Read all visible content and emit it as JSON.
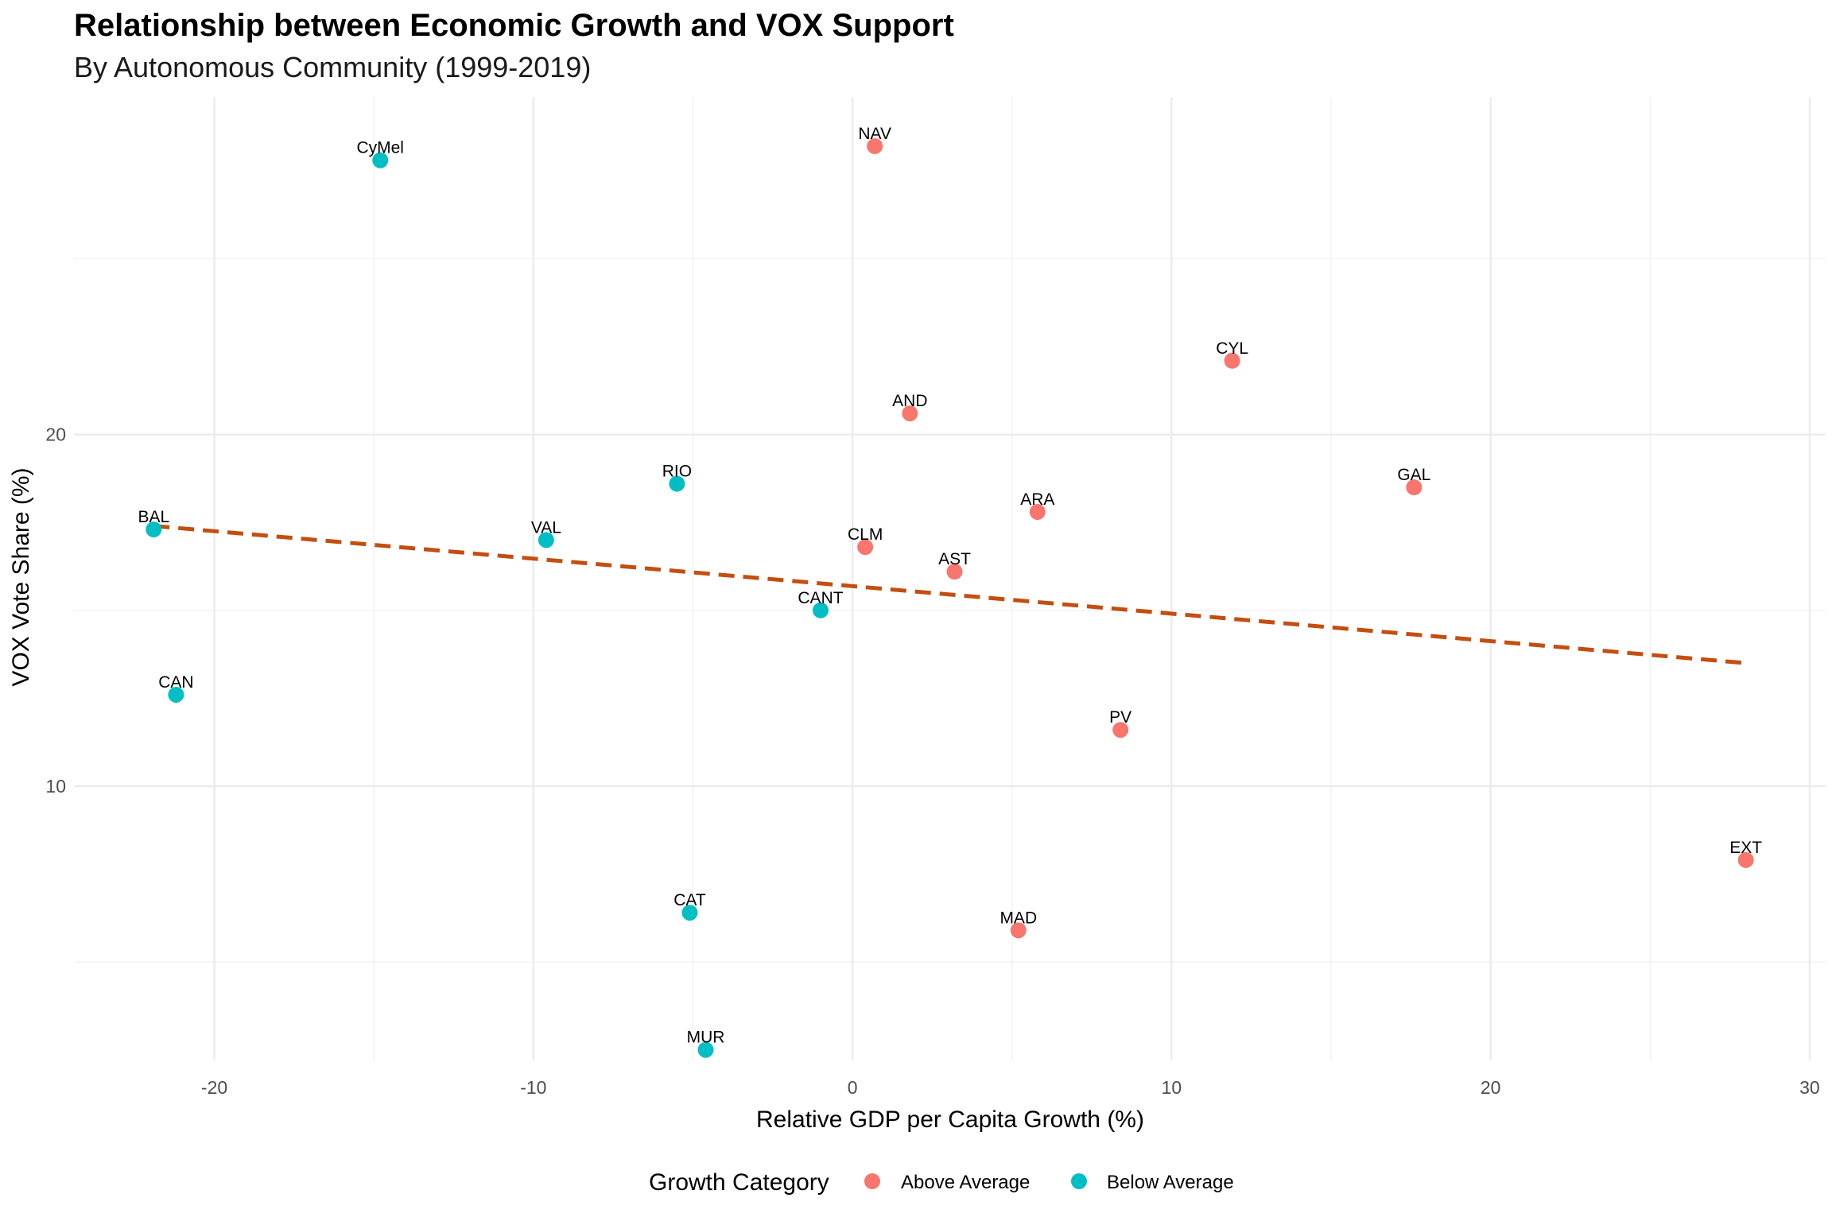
{
  "chart_data": {
    "type": "scatter",
    "title": "Relationship between Economic Growth and VOX Support",
    "subtitle": "By Autonomous Community (1999-2019)",
    "xlabel": "Relative GDP per Capita Growth (%)",
    "ylabel": "VOX Vote Share (%)",
    "xlim": [
      -24.4,
      30.5
    ],
    "ylim": [
      2.2,
      29.6
    ],
    "x_ticks": [
      -20,
      -10,
      0,
      10,
      20,
      30
    ],
    "x_tick_labels": [
      "-20",
      "-10",
      "0",
      "10",
      "20",
      "30"
    ],
    "y_ticks": [
      10,
      20
    ],
    "y_tick_labels": [
      "10",
      "20"
    ],
    "grid": true,
    "legend": {
      "title": "Growth Category",
      "position": "bottom",
      "entries": [
        {
          "name": "Above Average",
          "color": "#F8766D"
        },
        {
          "name": "Below Average",
          "color": "#00BFC4"
        }
      ]
    },
    "trendline": {
      "style": "dashed",
      "color": "#C44E10",
      "x": [
        -21.9,
        28.0
      ],
      "y": [
        17.4,
        13.5
      ]
    },
    "series": [
      {
        "name": "Above Average",
        "color": "#F8766D",
        "points": [
          {
            "label": "NAV",
            "x": 0.7,
            "y": 28.2
          },
          {
            "label": "CYL",
            "x": 11.9,
            "y": 22.1
          },
          {
            "label": "AND",
            "x": 1.8,
            "y": 20.6
          },
          {
            "label": "GAL",
            "x": 17.6,
            "y": 18.5
          },
          {
            "label": "ARA",
            "x": 5.8,
            "y": 17.8
          },
          {
            "label": "CLM",
            "x": 0.4,
            "y": 16.8
          },
          {
            "label": "AST",
            "x": 3.2,
            "y": 16.1
          },
          {
            "label": "PV",
            "x": 8.4,
            "y": 11.6
          },
          {
            "label": "EXT",
            "x": 28.0,
            "y": 7.9
          },
          {
            "label": "MAD",
            "x": 5.2,
            "y": 5.9
          }
        ]
      },
      {
        "name": "Below Average",
        "color": "#00BFC4",
        "points": [
          {
            "label": "CyMel",
            "x": -14.8,
            "y": 27.8
          },
          {
            "label": "RIO",
            "x": -5.5,
            "y": 18.6
          },
          {
            "label": "BAL",
            "x": -21.9,
            "y": 17.3
          },
          {
            "label": "VAL",
            "x": -9.6,
            "y": 17.0
          },
          {
            "label": "CANT",
            "x": -1.0,
            "y": 15.0
          },
          {
            "label": "CAN",
            "x": -21.2,
            "y": 12.6
          },
          {
            "label": "CAT",
            "x": -5.1,
            "y": 6.4
          },
          {
            "label": "MUR",
            "x": -4.6,
            "y": 2.5
          }
        ]
      }
    ]
  }
}
